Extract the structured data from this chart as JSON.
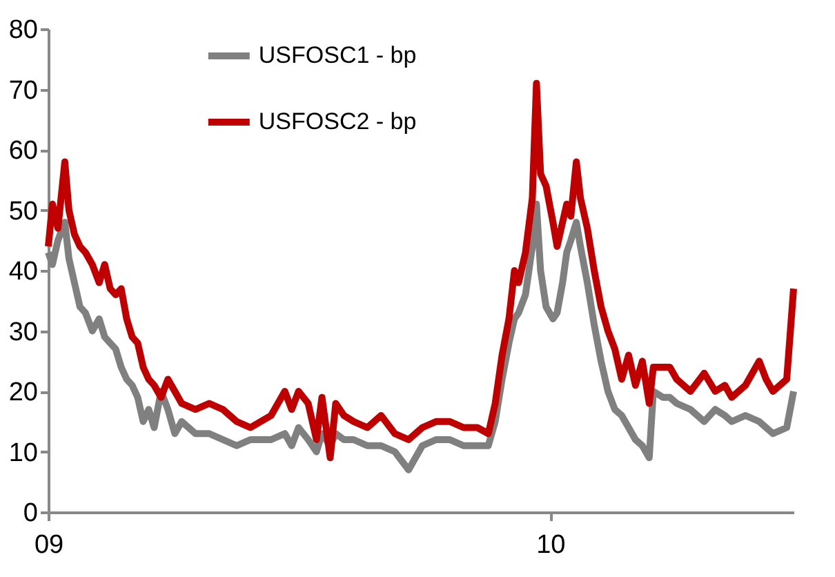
{
  "chart_data": {
    "type": "line",
    "x": [
      "2009-01-01",
      "2009-01-04",
      "2009-01-08",
      "2009-01-13",
      "2009-01-16",
      "2009-01-20",
      "2009-01-24",
      "2009-01-28",
      "2009-02-02",
      "2009-02-07",
      "2009-02-11",
      "2009-02-15",
      "2009-02-19",
      "2009-02-23",
      "2009-02-27",
      "2009-03-03",
      "2009-03-07",
      "2009-03-11",
      "2009-03-15",
      "2009-03-19",
      "2009-03-24",
      "2009-03-29",
      "2009-04-03",
      "2009-04-08",
      "2009-04-18",
      "2009-04-28",
      "2009-05-08",
      "2009-05-18",
      "2009-05-28",
      "2009-06-12",
      "2009-06-22",
      "2009-06-27",
      "2009-07-02",
      "2009-07-09",
      "2009-07-15",
      "2009-07-19",
      "2009-07-25",
      "2009-07-29",
      "2009-08-04",
      "2009-08-11",
      "2009-08-21",
      "2009-08-31",
      "2009-09-10",
      "2009-09-20",
      "2009-09-30",
      "2009-10-10",
      "2009-10-20",
      "2009-10-30",
      "2009-11-09",
      "2009-11-17",
      "2009-11-22",
      "2009-11-27",
      "2009-12-02",
      "2009-12-06",
      "2009-12-09",
      "2009-12-14",
      "2009-12-19",
      "2009-12-22",
      "2009-12-25",
      "2009-12-29",
      "2010-01-03",
      "2010-01-06",
      "2010-01-10",
      "2010-01-13",
      "2010-01-16",
      "2010-01-20",
      "2010-01-23",
      "2010-01-28",
      "2010-02-02",
      "2010-02-07",
      "2010-02-12",
      "2010-02-17",
      "2010-02-22",
      "2010-02-27",
      "2010-03-04",
      "2010-03-09",
      "2010-03-14",
      "2010-03-17",
      "2010-03-24",
      "2010-03-29",
      "2010-04-03",
      "2010-04-13",
      "2010-04-23",
      "2010-05-01",
      "2010-05-08",
      "2010-05-13",
      "2010-05-23",
      "2010-06-02",
      "2010-06-07",
      "2010-06-12",
      "2010-06-22",
      "2010-06-27"
    ],
    "series": [
      {
        "name": "USFOSC1 - bp",
        "color": "#808080",
        "values": [
          43,
          41,
          45,
          48,
          42,
          38,
          34,
          33,
          30,
          32,
          29,
          28,
          27,
          24,
          22,
          21,
          19,
          15,
          17,
          14,
          20,
          17,
          13,
          15,
          13,
          13,
          12,
          11,
          12,
          12,
          13,
          11,
          14,
          12,
          10,
          13,
          11,
          13,
          12,
          12,
          11,
          11,
          10,
          7,
          11,
          12,
          12,
          11,
          11,
          11,
          15,
          22,
          28,
          32,
          33,
          36,
          44,
          51,
          40,
          34,
          32,
          33,
          38,
          43,
          45,
          48,
          44,
          38,
          31,
          25,
          20,
          17,
          16,
          14,
          12,
          11,
          9,
          20,
          19,
          19,
          18,
          17,
          15,
          17,
          16,
          15,
          16,
          15,
          14,
          13,
          14,
          20
        ]
      },
      {
        "name": "USFOSC2 - bp",
        "color": "#c00000",
        "values": [
          44,
          51,
          47,
          58,
          50,
          46,
          44,
          43,
          41,
          38,
          41,
          37,
          36,
          37,
          32,
          29,
          28,
          24,
          22,
          21,
          19,
          22,
          20,
          18,
          17,
          18,
          17,
          15,
          14,
          16,
          20,
          17,
          20,
          18,
          12,
          19,
          9,
          18,
          16,
          15,
          14,
          16,
          13,
          12,
          14,
          15,
          15,
          14,
          14,
          13,
          18,
          26,
          32,
          40,
          38,
          43,
          52,
          71,
          56,
          54,
          48,
          44,
          48,
          51,
          49,
          58,
          52,
          47,
          40,
          34,
          30,
          27,
          22,
          26,
          21,
          25,
          18,
          24,
          24,
          24,
          22,
          20,
          23,
          20,
          21,
          19,
          21,
          25,
          22,
          20,
          22,
          37
        ]
      }
    ],
    "xlim": [
      "2009-01-01",
      "2010-06-27"
    ],
    "xticks": [
      {
        "value": "2009-01-01",
        "label": "09"
      },
      {
        "value": "2010-01-01",
        "label": "10"
      }
    ],
    "ylim": [
      0,
      80
    ],
    "yticks": [
      0,
      10,
      20,
      30,
      40,
      50,
      60,
      70,
      80
    ],
    "grid": false,
    "legend": "top",
    "line_style": "solid",
    "marker": "none"
  }
}
